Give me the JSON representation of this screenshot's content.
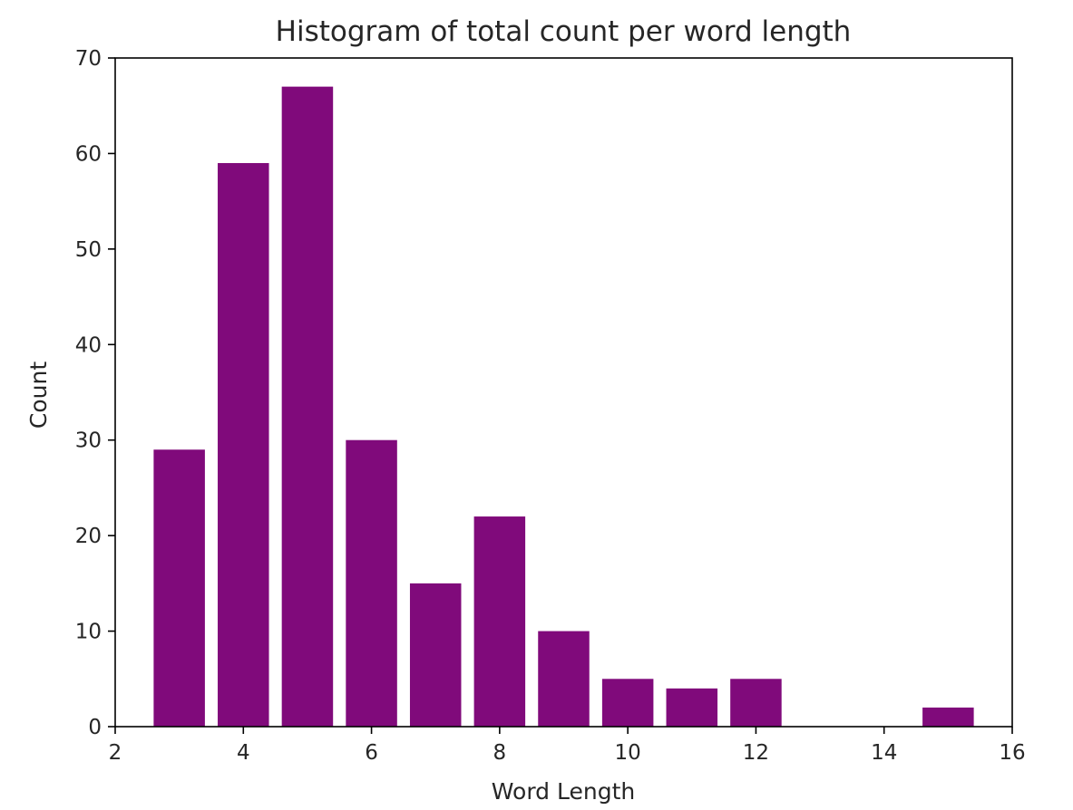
{
  "chart_data": {
    "type": "bar",
    "title": "Histogram of total count per word length",
    "xlabel": "Word Length",
    "ylabel": "Count",
    "x": [
      3,
      4,
      5,
      6,
      7,
      8,
      9,
      10,
      11,
      12,
      15
    ],
    "values": [
      29,
      59,
      67,
      30,
      15,
      22,
      10,
      5,
      4,
      5,
      2
    ],
    "xlim": [
      2,
      16
    ],
    "ylim": [
      0,
      70
    ],
    "xticks": [
      2,
      4,
      6,
      8,
      10,
      12,
      14,
      16
    ],
    "yticks": [
      0,
      10,
      20,
      30,
      40,
      50,
      60,
      70
    ],
    "bar_color": "#800a7b",
    "grid": false
  }
}
